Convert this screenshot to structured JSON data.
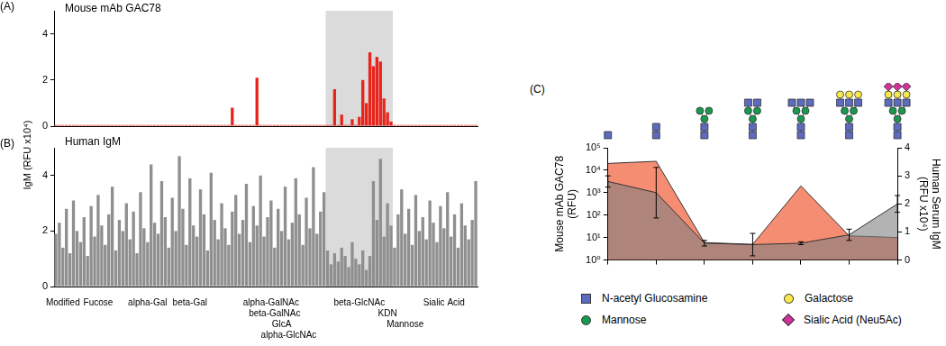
{
  "shared_ylabel": "IgM (RFU x10⁴)",
  "chart_data": [
    {
      "type": "bar",
      "panel": "(A)",
      "title": "Mouse mAb GAC78",
      "color": "#e8241c",
      "tick_labels": "y",
      "grid": false,
      "ylim": [
        0,
        5
      ],
      "yticks": [
        0,
        2,
        4
      ],
      "categories": [
        null,
        null,
        null,
        null,
        null,
        null,
        null,
        null,
        null,
        null,
        null,
        null,
        null,
        null,
        null,
        null,
        null,
        null,
        null,
        null,
        null,
        null,
        null,
        null,
        null,
        null,
        null,
        null,
        null,
        null,
        null,
        null,
        null,
        null,
        null,
        null,
        null,
        null,
        null,
        null,
        null,
        null,
        null,
        null,
        null,
        null,
        null,
        null,
        null,
        null,
        null,
        null,
        null,
        null,
        null,
        null,
        null,
        null,
        null,
        null,
        null,
        null,
        null,
        null,
        null,
        null,
        null,
        null,
        null,
        null,
        null,
        null,
        null,
        null,
        null,
        null,
        null,
        null,
        null,
        null,
        null,
        null,
        null,
        null,
        null,
        null,
        null,
        null,
        null,
        null,
        null,
        null,
        null,
        null,
        null,
        null,
        null,
        null,
        null,
        null,
        null,
        null,
        null,
        null,
        null,
        null,
        null,
        null,
        null,
        null,
        null,
        null,
        null,
        null,
        null,
        null,
        null,
        null,
        null,
        null
      ],
      "values": [
        0.05,
        0.05,
        0.05,
        0.05,
        0.05,
        0.05,
        0.05,
        0.05,
        0.05,
        0.05,
        0.05,
        0.05,
        0.05,
        0.05,
        0.05,
        0.05,
        0.05,
        0.05,
        0.05,
        0.05,
        0.05,
        0.05,
        0.05,
        0.05,
        0.05,
        0.05,
        0.05,
        0.05,
        0.05,
        0.05,
        0.05,
        0.05,
        0.05,
        0.05,
        0.05,
        0.05,
        0.05,
        0.05,
        0.05,
        0.05,
        0.05,
        0.05,
        0.05,
        0.05,
        0.05,
        0.05,
        0.05,
        0.05,
        0.05,
        0.05,
        0.8,
        0.05,
        0.05,
        0.05,
        0.05,
        0.05,
        0.05,
        2.1,
        0.05,
        0.05,
        0.05,
        0.05,
        0.05,
        0.05,
        0.05,
        0.05,
        0.05,
        0.05,
        0.05,
        0.05,
        0.05,
        0.05,
        0.05,
        0.05,
        0.05,
        0.05,
        0.05,
        0.05,
        0.05,
        1.6,
        0.05,
        0.5,
        0.05,
        0.05,
        0.3,
        0.05,
        0.4,
        2.0,
        1.0,
        3.2,
        2.6,
        3.0,
        2.8,
        1.2,
        0.6,
        0.2,
        0.05,
        0.05,
        0.05,
        0.05,
        0.05,
        0.05,
        0.05,
        0.05,
        0.05,
        0.05,
        0.05,
        0.05,
        0.05,
        0.05,
        0.05,
        0.05,
        0.05,
        0.05,
        0.05,
        0.05,
        0.05,
        0.05,
        0.05,
        0.05
      ]
    },
    {
      "type": "bar",
      "panel": "(B)",
      "title": "Human IgM",
      "color": "#8f8f8f",
      "grid": false,
      "ylim": [
        0,
        5
      ],
      "yticks": [
        0,
        2,
        4
      ],
      "categories": [
        null,
        null,
        "Modified",
        null,
        null,
        null,
        null,
        null,
        null,
        null,
        null,
        null,
        "Fucose",
        null,
        null,
        null,
        null,
        null,
        null,
        null,
        null,
        null,
        null,
        null,
        null,
        null,
        "alpha-Gal",
        null,
        null,
        null,
        null,
        null,
        null,
        null,
        null,
        null,
        null,
        null,
        "beta-Gal",
        null,
        null,
        null,
        null,
        null,
        null,
        null,
        null,
        null,
        null,
        null,
        null,
        null,
        null,
        null,
        null,
        null,
        null,
        null,
        null,
        null,
        null,
        "alpha-GalNAc",
        "beta-GalNAc",
        null,
        "GlcA",
        null,
        "alpha-GlcNAc",
        null,
        null,
        null,
        null,
        null,
        null,
        null,
        null,
        null,
        null,
        null,
        null,
        null,
        null,
        null,
        null,
        null,
        null,
        null,
        "beta-GlcNAc",
        null,
        null,
        null,
        null,
        null,
        null,
        null,
        "KDN",
        null,
        null,
        null,
        null,
        "Mannose",
        null,
        null,
        null,
        null,
        null,
        null,
        null,
        null,
        null,
        null,
        "Sialic Acid",
        null,
        null,
        null,
        null,
        null,
        null,
        null,
        null,
        null
      ],
      "values": [
        1.9,
        2.3,
        1.4,
        2.8,
        1.2,
        3.1,
        2.0,
        1.6,
        2.5,
        1.1,
        2.9,
        1.8,
        3.3,
        2.2,
        1.5,
        2.6,
        3.6,
        1.3,
        2.4,
        2.0,
        3.0,
        1.7,
        2.7,
        1.2,
        3.4,
        2.1,
        1.6,
        4.4,
        2.3,
        1.9,
        3.8,
        2.5,
        1.4,
        3.2,
        2.0,
        4.7,
        2.8,
        1.5,
        3.9,
        2.2,
        1.8,
        3.5,
        2.6,
        1.3,
        4.1,
        2.4,
        1.7,
        3.0,
        2.1,
        1.5,
        2.7,
        3.3,
        1.9,
        2.4,
        3.7,
        1.6,
        2.9,
        2.2,
        4.0,
        1.8,
        2.5,
        3.1,
        1.4,
        2.8,
        2.0,
        3.6,
        1.7,
        2.3,
        3.9,
        2.6,
        1.5,
        3.2,
        2.1,
        4.3,
        1.9,
        2.7,
        3.4,
        1.3,
        0.8,
        1.2,
        0.9,
        1.4,
        1.1,
        0.7,
        1.6,
        1.0,
        0.8,
        1.3,
        0.6,
        1.1,
        3.8,
        2.4,
        4.6,
        1.8,
        3.0,
        2.2,
        1.4,
        2.6,
        3.5,
        1.9,
        2.8,
        1.5,
        3.3,
        2.0,
        2.5,
        1.7,
        3.1,
        2.3,
        1.6,
        2.9,
        2.1,
        3.4,
        1.8,
        2.6,
        1.4,
        3.0,
        2.2,
        1.7,
        2.4,
        3.8
      ]
    },
    {
      "type": "area",
      "panel": "(C)",
      "grid": false,
      "log": "y",
      "categories": [
        null,
        null,
        null,
        null,
        null,
        null,
        null
      ],
      "ylabel": "Mouse mAb GAC78\n(RFU)",
      "ylim": [
        1,
        100000
      ],
      "yticks": [
        {
          "value": 1,
          "label": "10⁰"
        },
        {
          "value": 10,
          "label": "10¹"
        },
        {
          "value": 100,
          "label": "10²"
        },
        {
          "value": 1000,
          "label": "10³"
        },
        {
          "value": 10000,
          "label": "10⁴"
        },
        {
          "value": 100000,
          "label": "10⁵"
        }
      ],
      "y2label": "Human Serum IgM\n(RFU x10⁴)",
      "y2lim": [
        0,
        4
      ],
      "y2ticks": [
        0,
        1,
        2,
        3,
        4
      ],
      "series": [
        {
          "color": "#f4876b",
          "values": [
            20000,
            25000,
            6,
            5,
            2000,
            12,
            10
          ]
        },
        {
          "color": "#808080",
          "axis": "y2",
          "values": [
            2.8,
            2.4,
            0.6,
            0.55,
            0.6,
            0.9,
            2.0
          ],
          "errors": [
            0.2,
            0.9,
            0.1,
            0.4,
            0.05,
            0.2,
            0.3
          ]
        }
      ],
      "symbol_key": [
        {
          "name": "N-acetyl Glucosamine",
          "color": "#5c6bc0",
          "marker": "square"
        },
        {
          "name": "Galactose",
          "color": "#f7e94b",
          "marker": "circle"
        },
        {
          "name": "Mannose",
          "color": "#1a9850",
          "marker": "circle"
        },
        {
          "name": "Sialic Acid (Neu5Ac)",
          "color": "#d0349a",
          "marker": "diamond"
        }
      ]
    }
  ]
}
